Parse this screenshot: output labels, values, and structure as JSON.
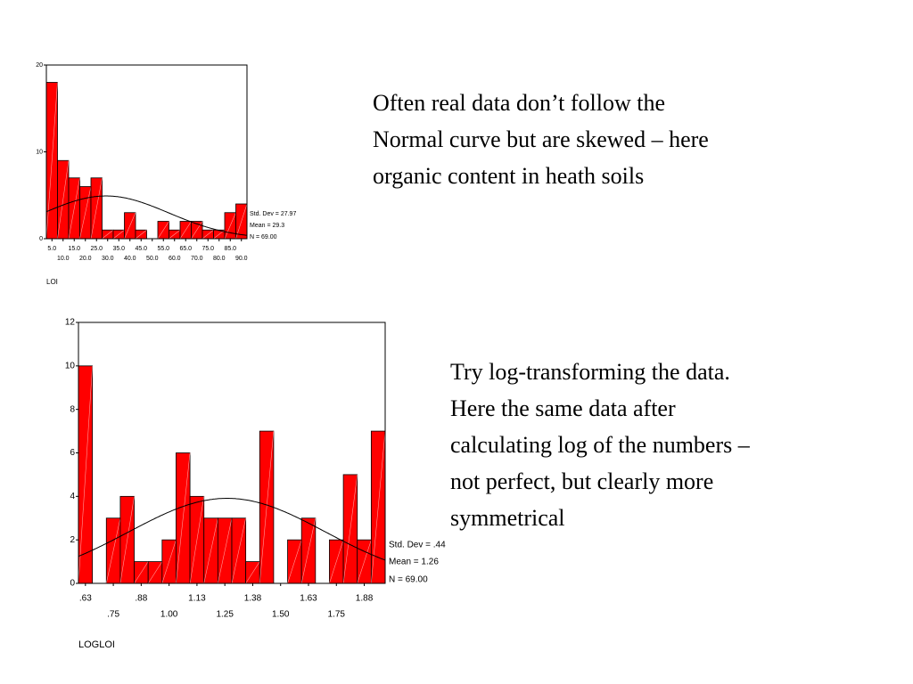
{
  "chart_data": [
    {
      "type": "bar",
      "x_label": "LOI",
      "x": [
        5,
        10,
        15,
        20,
        25,
        30,
        35,
        40,
        45,
        50,
        55,
        60,
        65,
        70,
        75,
        80,
        85,
        90
      ],
      "values": [
        18,
        9,
        7,
        6,
        7,
        1,
        1,
        3,
        1,
        0,
        2,
        1,
        2,
        2,
        1,
        1,
        3,
        4
      ],
      "color": "#ff0000",
      "xlim": [
        2.5,
        92.5
      ],
      "xticks": [
        {
          "value": 5,
          "label": "5.0"
        },
        {
          "value": 10,
          "label": "10.0"
        },
        {
          "value": 15,
          "label": "15.0"
        },
        {
          "value": 20,
          "label": "20.0"
        },
        {
          "value": 25,
          "label": "25.0"
        },
        {
          "value": 30,
          "label": "30.0"
        },
        {
          "value": 35,
          "label": "35.0"
        },
        {
          "value": 40,
          "label": "40.0"
        },
        {
          "value": 45,
          "label": "45.0"
        },
        {
          "value": 50,
          "label": "50.0"
        },
        {
          "value": 55,
          "label": "55.0"
        },
        {
          "value": 60,
          "label": "60.0"
        },
        {
          "value": 65,
          "label": "65.0"
        },
        {
          "value": 70,
          "label": "70.0"
        },
        {
          "value": 75,
          "label": "75.0"
        },
        {
          "value": 80,
          "label": "80.0"
        },
        {
          "value": 85,
          "label": "85.0"
        },
        {
          "value": 90,
          "label": "90.0"
        }
      ],
      "ylim": [
        0,
        20
      ],
      "yticks": [
        0,
        10,
        20
      ],
      "stats": [
        {
          "label": "Std. Dev = 27.97",
          "value": 27.97
        },
        {
          "label": "Mean = 29.3",
          "value": 29.3
        },
        {
          "label": "N = 69.00",
          "value": 69
        }
      ]
    },
    {
      "type": "bar",
      "x_label": "LOGLOI",
      "x": [
        0.625,
        0.6875,
        0.75,
        0.8125,
        0.875,
        0.9375,
        1,
        1.0625,
        1.125,
        1.1875,
        1.25,
        1.3125,
        1.375,
        1.4375,
        1.5,
        1.5625,
        1.625,
        1.6875,
        1.75,
        1.8125,
        1.875,
        1.9375
      ],
      "values": [
        10,
        0,
        3,
        4,
        1,
        1,
        2,
        6,
        4,
        3,
        3,
        3,
        1,
        7,
        0,
        2,
        3,
        0,
        2,
        5,
        2,
        7
      ],
      "color": "#ff0000",
      "xlim": [
        0.59375,
        1.96875
      ],
      "xticks": [
        {
          "value": 0.625,
          "label": ".63"
        },
        {
          "value": 0.75,
          "label": ".75"
        },
        {
          "value": 0.875,
          "label": ".88"
        },
        {
          "value": 1,
          "label": "1.00"
        },
        {
          "value": 1.125,
          "label": "1.13"
        },
        {
          "value": 1.25,
          "label": "1.25"
        },
        {
          "value": 1.375,
          "label": "1.38"
        },
        {
          "value": 1.5,
          "label": "1.50"
        },
        {
          "value": 1.625,
          "label": "1.63"
        },
        {
          "value": 1.75,
          "label": "1.75"
        },
        {
          "value": 1.875,
          "label": "1.88"
        }
      ],
      "ylim": [
        0,
        12
      ],
      "yticks": [
        0,
        2,
        4,
        6,
        8,
        10,
        12
      ],
      "stats": [
        {
          "label": "Std. Dev = .44",
          "value": 0.44
        },
        {
          "label": "Mean = 1.26",
          "value": 1.26
        },
        {
          "label": "N = 69.00",
          "value": 69
        }
      ]
    }
  ],
  "paragraphs": [
    [
      "Often real data don’t follow the",
      "Normal curve but are skewed – here",
      "organic content in heath soils"
    ],
    [
      "Try log-transforming the data.",
      "Here the same data after",
      "calculating log of the numbers –",
      "not perfect, but clearly more",
      "symmetrical"
    ]
  ]
}
